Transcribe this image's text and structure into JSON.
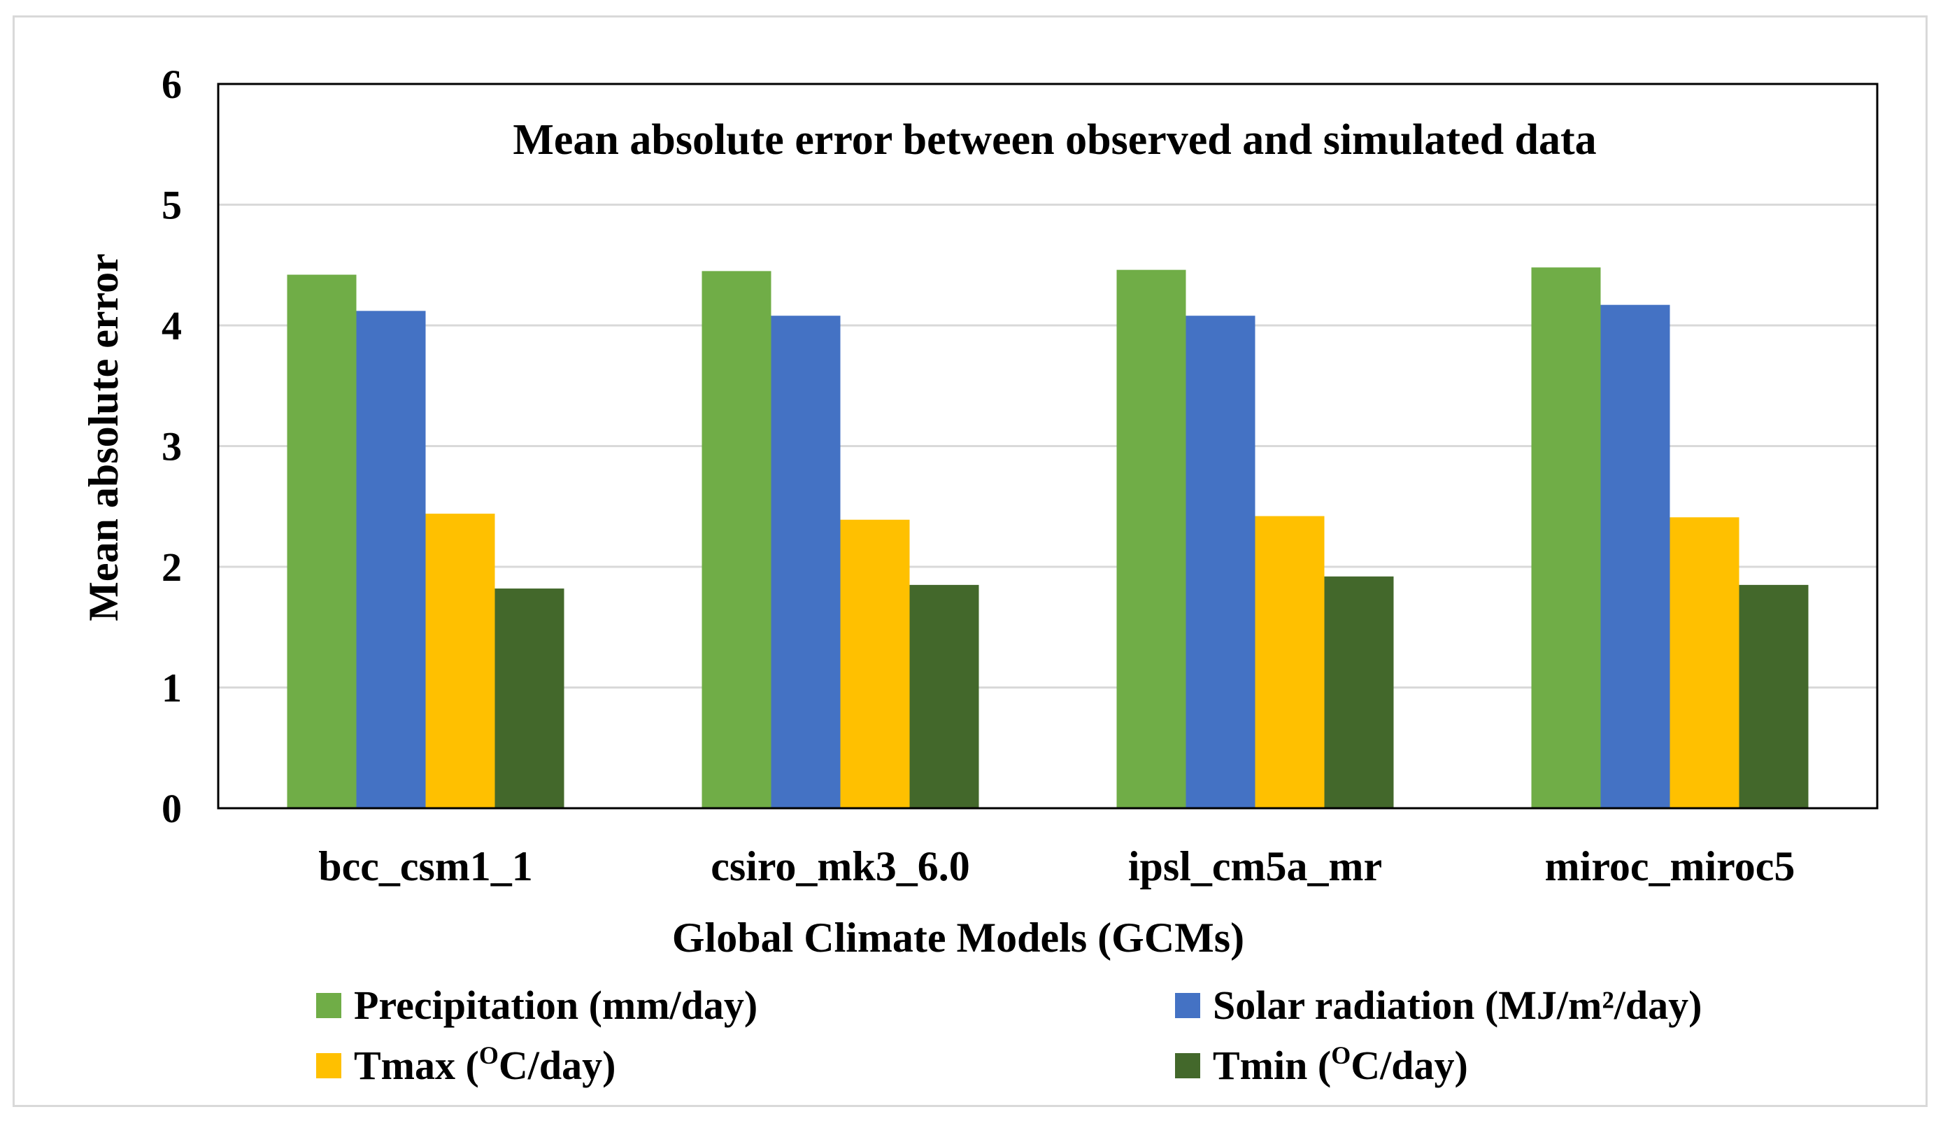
{
  "chart_data": {
    "type": "bar",
    "title": "Mean absolute error between observed and simulated data",
    "xlabel": "Global Climate Models (GCMs)",
    "ylabel": "Mean absolute error",
    "ylim": [
      0,
      6
    ],
    "yticks": [
      "0",
      "1",
      "2",
      "3",
      "4",
      "5",
      "6"
    ],
    "grid": true,
    "legend_position": "bottom",
    "categories": [
      "bcc_csm1_1",
      "csiro_mk3_6.0",
      "ipsl_cm5a_mr",
      "miroc_miroc5"
    ],
    "series": [
      {
        "name": "Precipitation (mm/day)",
        "color": "#70ad47",
        "values": [
          4.42,
          4.45,
          4.46,
          4.48
        ]
      },
      {
        "name": "Solar radiation (MJ/m²/day)",
        "color": "#4472c4",
        "values": [
          4.12,
          4.08,
          4.08,
          4.17
        ]
      },
      {
        "name": "Tmax (ᴼC/day)",
        "color": "#ffc000",
        "values": [
          2.44,
          2.39,
          2.42,
          2.41
        ]
      },
      {
        "name": "Tmin (ᴼC/day)",
        "color": "#43682b",
        "values": [
          1.82,
          1.85,
          1.92,
          1.85
        ]
      }
    ],
    "legend_display": [
      {
        "name": "Precipitation (mm/day)"
      },
      {
        "name": "Solar radiation (MJ/m²/day)"
      },
      {
        "pre": "Tmax (",
        "sup": "O",
        "post": "C/day)"
      },
      {
        "pre": "Tmin (",
        "sup": "O",
        "post": "C/day)"
      }
    ]
  }
}
